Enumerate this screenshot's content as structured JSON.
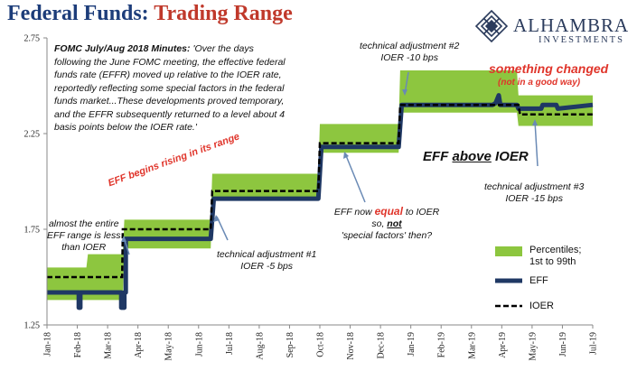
{
  "header": {
    "title_part1": "Federal Funds: ",
    "title_part2": "Trading Range",
    "logo_name": "ALHAMBRA",
    "logo_sub": "INVESTMENTS",
    "logo_icon": "diamond-lattice-icon"
  },
  "colors": {
    "percentile_band": "#8dc63f",
    "eff_line": "#1f3864",
    "ioer_line": "#000000",
    "title_blue": "#1d3d7a",
    "title_red": "#c0392b",
    "annotation_red": "#e0352b"
  },
  "annotations": {
    "minutes_lead": "FOMC July/Aug 2018 Minutes:",
    "minutes_line1": " 'Over the days",
    "minutes_line2": "following the June FOMC meeting, the effective federal",
    "minutes_line3": "funds rate (EFFR) moved up relative to the IOER rate,",
    "minutes_line4": "reportedly reflecting some special factors in the federal",
    "minutes_line5": "funds market...These developments proved temporary,",
    "minutes_line6": "and the EFFR subsequently returned to a level about 4",
    "minutes_line7": "basis points below the IOER rate.'",
    "eff_rising": "EFF begins rising in its range",
    "almost_line1": "almost the entire",
    "almost_line2": "EFF range is less",
    "almost_line3": "than IOER",
    "tech1_line1": "technical adjustment #1",
    "tech1_line2": "IOER -5 bps",
    "tech2_line1": "technical adjustment #2",
    "tech2_line2": "IOER -10 bps",
    "tech3_line1": "technical adjustment #3",
    "tech3_line2": "IOER -15 bps",
    "eff_now_prefix": "EFF now ",
    "eff_now_equal": "equal",
    "eff_now_suffix": " to IOER",
    "so_not_prefix": "so, ",
    "so_not_bold": "not",
    "special_factors": "'special factors' then?",
    "eff_above_prefix": "EFF ",
    "eff_above_bold": "above",
    "eff_above_suffix": " IOER",
    "something_changed": "something changed",
    "not_good_way": "(not in a good way)"
  },
  "chart_data": {
    "type": "line",
    "title": "Federal Funds: Trading Range",
    "xlabel": "",
    "ylabel": "",
    "ylim": [
      1.25,
      2.75
    ],
    "yticks": [
      "2.75",
      "2.25",
      "1.75",
      "1.25"
    ],
    "xticks": [
      "Jan-18",
      "Feb-18",
      "Mar-18",
      "Apr-18",
      "May-18",
      "Jun-18",
      "Jul-18",
      "Aug-18",
      "Sep-18",
      "Oct-18",
      "Nov-18",
      "Dec-18",
      "Jan-19",
      "Feb-19",
      "Mar-19",
      "Apr-19",
      "May-19",
      "Jun-19",
      "Jul-19"
    ],
    "legend": {
      "position": "bottom-right",
      "entries": [
        {
          "name": "Percentiles; 1st to 99th",
          "type": "area"
        },
        {
          "name": "EFF",
          "type": "line"
        },
        {
          "name": "IOER",
          "type": "dashed"
        }
      ]
    },
    "series": [
      {
        "name": "Percentiles; 1st to 99th",
        "type": "band",
        "x": [
          0,
          1.3,
          1.35,
          2.5,
          2.55,
          5.4,
          5.45,
          8.95,
          9.0,
          11.6,
          11.65,
          14.6,
          14.65,
          15.5,
          15.55,
          18.0
        ],
        "low": [
          1.38,
          1.38,
          1.38,
          1.38,
          1.65,
          1.65,
          1.9,
          1.9,
          2.15,
          2.15,
          2.36,
          2.36,
          2.36,
          2.36,
          2.29,
          2.29
        ],
        "high": [
          1.55,
          1.55,
          1.62,
          1.62,
          1.8,
          1.8,
          2.04,
          2.04,
          2.3,
          2.3,
          2.58,
          2.58,
          2.58,
          2.58,
          2.45,
          2.45
        ]
      },
      {
        "name": "EFF",
        "x": [
          0,
          1.05,
          1.05,
          1.1,
          1.1,
          2.45,
          2.45,
          2.55,
          2.55,
          2.6,
          2.6,
          5.4,
          5.5,
          8.95,
          9.05,
          11.6,
          11.7,
          14.7,
          14.8,
          14.9,
          14.95,
          15.5,
          15.55,
          16.3,
          16.35,
          16.8,
          16.85,
          18.0
        ],
        "y": [
          1.42,
          1.42,
          1.34,
          1.34,
          1.42,
          1.42,
          1.34,
          1.34,
          1.42,
          1.42,
          1.7,
          1.7,
          1.91,
          1.91,
          2.18,
          2.18,
          2.4,
          2.4,
          2.41,
          2.45,
          2.4,
          2.4,
          2.38,
          2.38,
          2.4,
          2.4,
          2.38,
          2.4
        ]
      },
      {
        "name": "IOER",
        "x": [
          0,
          2.48,
          2.5,
          5.4,
          5.45,
          8.95,
          9.0,
          11.6,
          11.65,
          15.55,
          15.6,
          18.0
        ],
        "y": [
          1.5,
          1.5,
          1.75,
          1.75,
          1.95,
          1.95,
          2.2,
          2.2,
          2.4,
          2.4,
          2.35,
          2.35
        ]
      }
    ]
  }
}
